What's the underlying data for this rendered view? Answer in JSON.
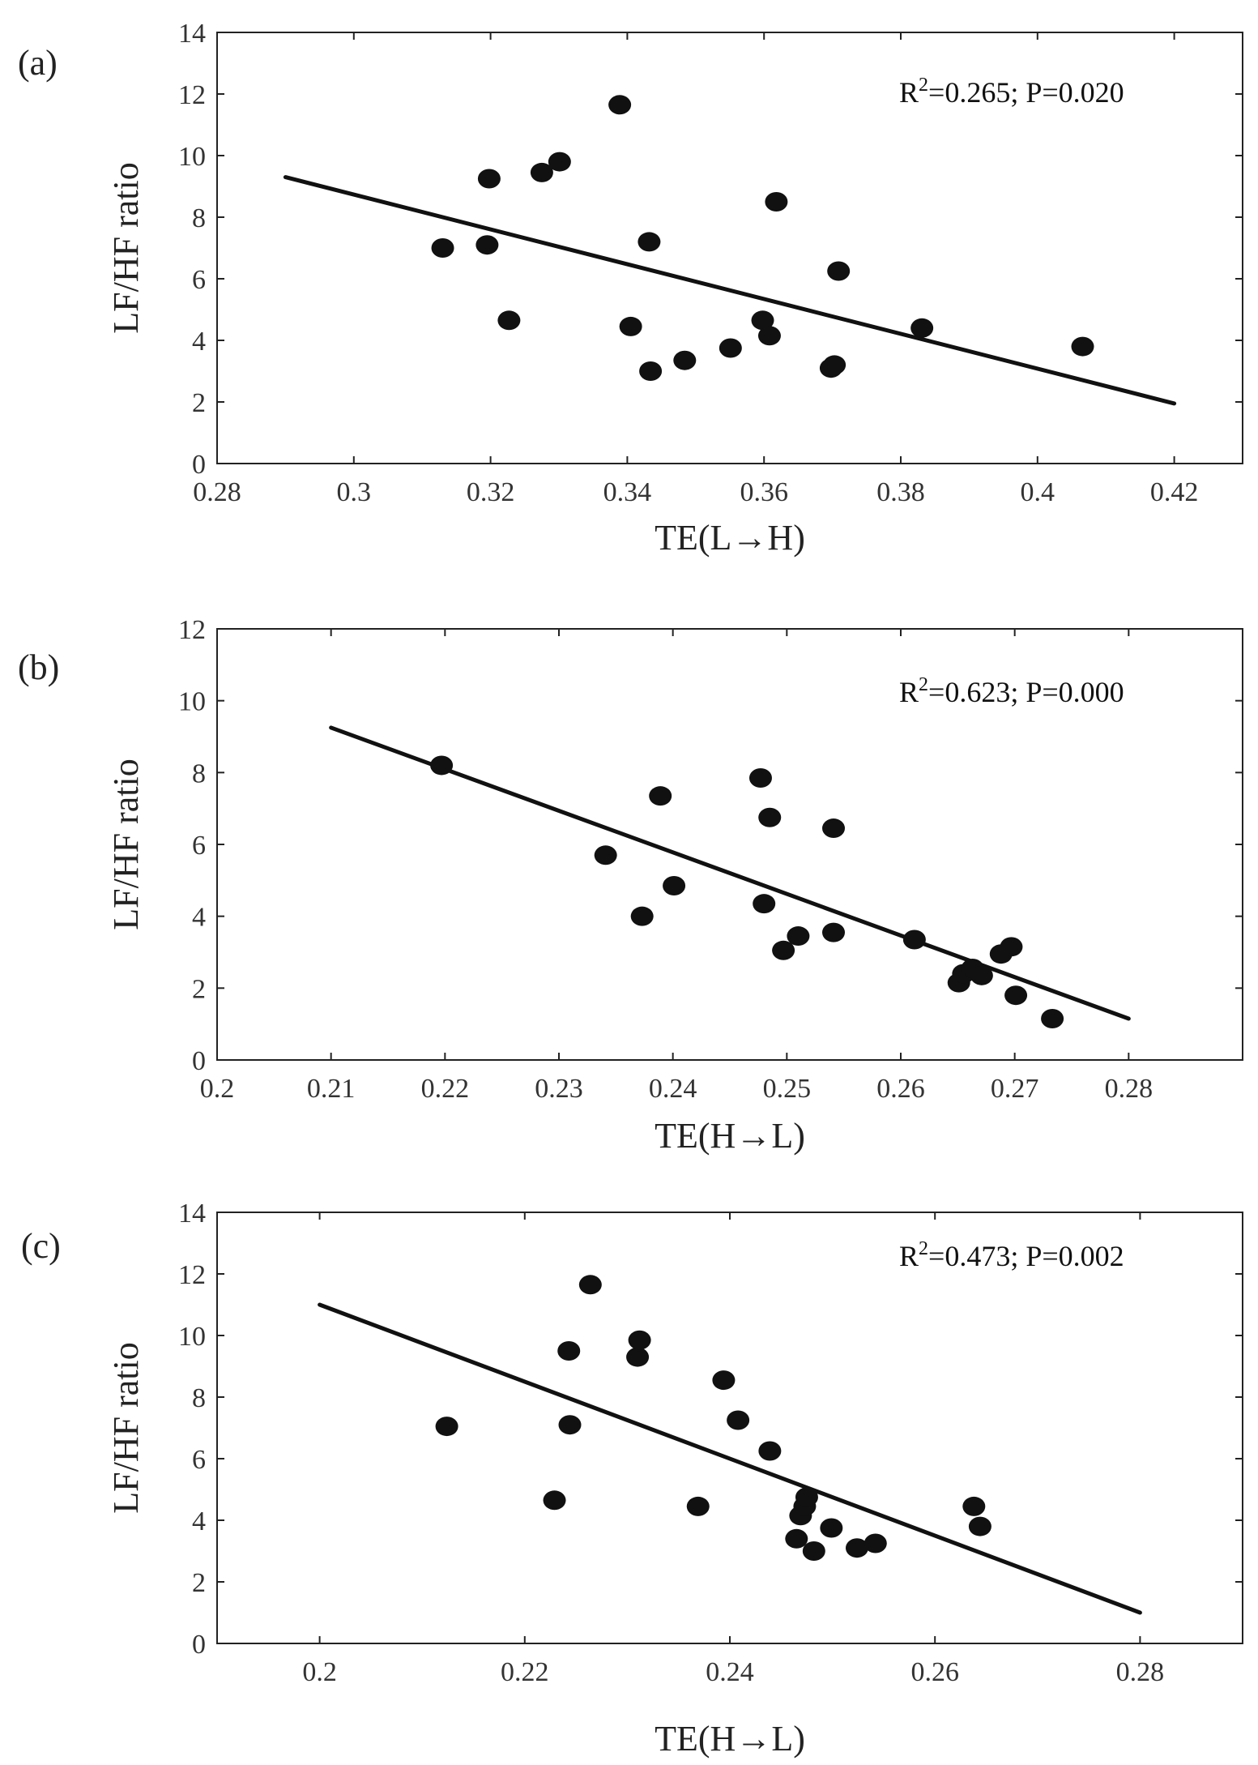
{
  "chart_data": [
    {
      "type": "scatter",
      "panel_label": "(a)",
      "xlabel": "TE(L→H)",
      "ylabel": "LF/HF ratio",
      "annotation_text": "R2=0.265; P=0.020",
      "annotation_base": "R",
      "annotation_sup": "2",
      "annotation_rest": "=0.265; P=0.020",
      "xlim": [
        0.28,
        0.43
      ],
      "ylim": [
        0,
        14
      ],
      "xticks": [
        0.28,
        0.3,
        0.32,
        0.34,
        0.36,
        0.38,
        0.4,
        0.42
      ],
      "xtick_labels": [
        "0.28",
        "0.3",
        "0.32",
        "0.34",
        "0.36",
        "0.38",
        "0.4",
        "0.42"
      ],
      "yticks": [
        0,
        2,
        4,
        6,
        8,
        10,
        12,
        14
      ],
      "ytick_labels": [
        "0",
        "2",
        "4",
        "6",
        "8",
        "10",
        "12",
        "14"
      ],
      "points": [
        [
          0.313,
          7.0
        ],
        [
          0.3195,
          7.1
        ],
        [
          0.3198,
          9.25
        ],
        [
          0.3227,
          4.65
        ],
        [
          0.3275,
          9.45
        ],
        [
          0.3301,
          9.8
        ],
        [
          0.3389,
          11.65
        ],
        [
          0.3405,
          4.45
        ],
        [
          0.3432,
          7.2
        ],
        [
          0.3434,
          3.0
        ],
        [
          0.3484,
          3.35
        ],
        [
          0.3551,
          3.75
        ],
        [
          0.3598,
          4.65
        ],
        [
          0.3608,
          4.15
        ],
        [
          0.3618,
          8.5
        ],
        [
          0.3698,
          3.1
        ],
        [
          0.3703,
          3.2
        ],
        [
          0.3709,
          6.25
        ],
        [
          0.3831,
          4.4
        ],
        [
          0.4066,
          3.8
        ]
      ],
      "fit": [
        [
          0.29,
          9.3
        ],
        [
          0.42,
          1.95
        ]
      ]
    },
    {
      "type": "scatter",
      "panel_label": "(b)",
      "xlabel": "TE(H→L)",
      "ylabel": "LF/HF ratio",
      "annotation_text": "R2=0.623; P=0.000",
      "annotation_base": "R",
      "annotation_sup": "2",
      "annotation_rest": "=0.623; P=0.000",
      "xlim": [
        0.2,
        0.29
      ],
      "ylim": [
        0,
        12
      ],
      "xticks": [
        0.2,
        0.21,
        0.22,
        0.23,
        0.24,
        0.25,
        0.26,
        0.27,
        0.28
      ],
      "xtick_labels": [
        "0.2",
        "0.21",
        "0.22",
        "0.23",
        "0.24",
        "0.25",
        "0.26",
        "0.27",
        "0.28"
      ],
      "yticks": [
        0,
        2,
        4,
        6,
        8,
        10,
        12
      ],
      "ytick_labels": [
        "0",
        "2",
        "4",
        "6",
        "8",
        "10",
        "12"
      ],
      "points": [
        [
          0.2197,
          8.2
        ],
        [
          0.2341,
          5.7
        ],
        [
          0.2373,
          4.0
        ],
        [
          0.2389,
          7.35
        ],
        [
          0.2401,
          4.85
        ],
        [
          0.2477,
          7.85
        ],
        [
          0.248,
          4.35
        ],
        [
          0.2485,
          6.75
        ],
        [
          0.2497,
          3.05
        ],
        [
          0.251,
          3.45
        ],
        [
          0.2541,
          6.45
        ],
        [
          0.2541,
          3.55
        ],
        [
          0.2612,
          3.35
        ],
        [
          0.2651,
          2.15
        ],
        [
          0.2655,
          2.4
        ],
        [
          0.2663,
          2.55
        ],
        [
          0.2671,
          2.35
        ],
        [
          0.2688,
          2.95
        ],
        [
          0.2697,
          3.15
        ],
        [
          0.2701,
          1.8
        ],
        [
          0.2733,
          1.15
        ]
      ],
      "fit": [
        [
          0.21,
          9.25
        ],
        [
          0.28,
          1.15
        ]
      ]
    },
    {
      "type": "scatter",
      "panel_label": "(c)",
      "xlabel": "TE(H→L)",
      "ylabel": "LF/HF ratio",
      "annotation_text": "R2=0.473; P=0.002",
      "annotation_base": "R",
      "annotation_sup": "2",
      "annotation_rest": "=0.473; P=0.002",
      "xlim": [
        0.19,
        0.29
      ],
      "ylim": [
        0,
        14
      ],
      "xticks": [
        0.2,
        0.22,
        0.24,
        0.26,
        0.28
      ],
      "xtick_labels": [
        "0.2",
        "0.22",
        "0.24",
        "0.26",
        "0.28"
      ],
      "yticks": [
        0,
        2,
        4,
        6,
        8,
        10,
        12,
        14
      ],
      "ytick_labels": [
        "0",
        "2",
        "4",
        "6",
        "8",
        "10",
        "12",
        "14"
      ],
      "points": [
        [
          0.2124,
          7.05
        ],
        [
          0.2229,
          4.65
        ],
        [
          0.2243,
          9.5
        ],
        [
          0.2244,
          7.1
        ],
        [
          0.2264,
          11.65
        ],
        [
          0.231,
          9.3
        ],
        [
          0.2312,
          9.85
        ],
        [
          0.2369,
          4.45
        ],
        [
          0.2394,
          8.55
        ],
        [
          0.2408,
          7.25
        ],
        [
          0.2439,
          6.25
        ],
        [
          0.2465,
          3.4
        ],
        [
          0.2469,
          4.15
        ],
        [
          0.2473,
          4.45
        ],
        [
          0.2475,
          4.75
        ],
        [
          0.2482,
          3.0
        ],
        [
          0.2499,
          3.75
        ],
        [
          0.2524,
          3.1
        ],
        [
          0.2542,
          3.25
        ],
        [
          0.2638,
          4.45
        ],
        [
          0.2644,
          3.8
        ]
      ],
      "fit": [
        [
          0.2,
          11.0
        ],
        [
          0.28,
          1.0
        ]
      ]
    }
  ]
}
